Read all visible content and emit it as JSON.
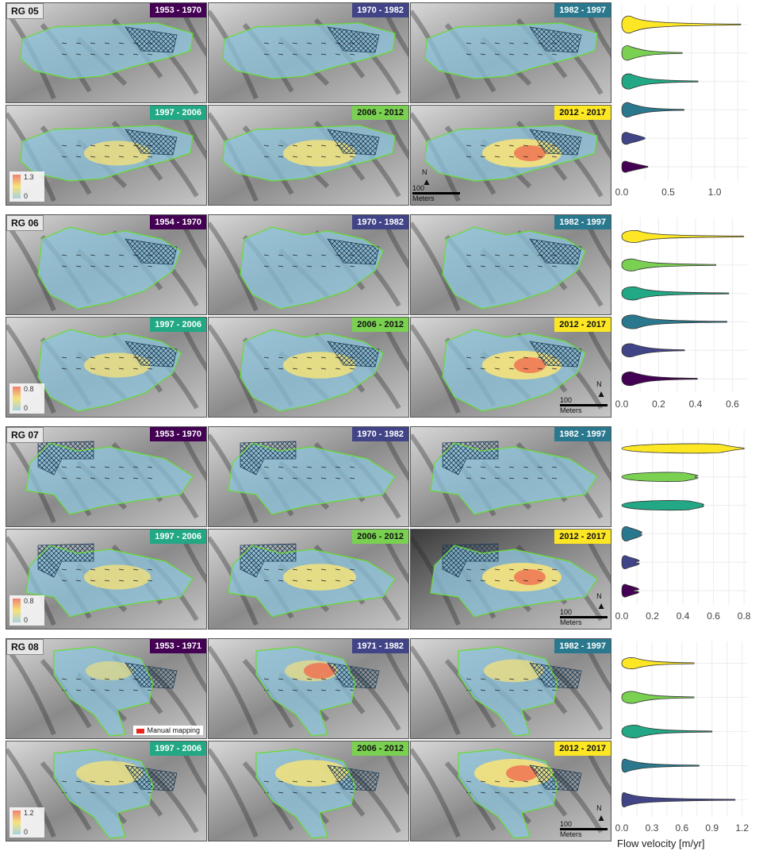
{
  "colors": {
    "periods": [
      "#fde725",
      "#7ad151",
      "#22a884",
      "#2a788e",
      "#414487",
      "#440154"
    ],
    "period_label_bg": [
      "#440154",
      "#414487",
      "#2a788e",
      "#22a884",
      "#7ad151",
      "#fde725"
    ],
    "outline": "#66dd33",
    "icefill": "#8ec6de",
    "fast": "#f06d50",
    "mid": "#f6e27a"
  },
  "icons": {
    "north_arrow": "north-arrow-icon",
    "hatch": "crosshatch-pattern"
  },
  "blocks": [
    {
      "id": "RG 05",
      "periods": [
        "1953 - 1970",
        "1970 - 1982",
        "1982 - 1997",
        "1997 - 2006",
        "2006 - 2012",
        "2012 - 2017"
      ],
      "legend_max": "1.3",
      "legend_min": "0",
      "north": "N",
      "scale": "100",
      "scale_unit": "Meters"
    },
    {
      "id": "RG 06",
      "periods": [
        "1954 - 1970",
        "1970 - 1982",
        "1982 - 1997",
        "1997 - 2006",
        "2006 - 2012",
        "2012 - 2017"
      ],
      "legend_max": "0.8",
      "legend_min": "0",
      "north": "N",
      "scale": "100",
      "scale_unit": "Meters"
    },
    {
      "id": "RG 07",
      "periods": [
        "1953 - 1970",
        "1970 - 1982",
        "1982 - 1997",
        "1997 - 2006",
        "2006 - 2012",
        "2012 - 2017"
      ],
      "legend_max": "0.8",
      "legend_min": "0",
      "north": "N",
      "scale": "100",
      "scale_unit": "Meters"
    },
    {
      "id": "RG 08",
      "periods": [
        "1953 - 1971",
        "1971 - 1982",
        "1982 - 1997",
        "1997 - 2006",
        "2006 - 2012",
        "2012 - 2017"
      ],
      "legend_max": "1.2",
      "legend_min": "0",
      "north": "N",
      "scale": "100",
      "scale_unit": "Meters",
      "manual_mapping": "Manual mapping"
    }
  ],
  "chart_data": [
    {
      "type": "violin",
      "block": "RG 05",
      "xlim": [
        0,
        1.35
      ],
      "ticks": [
        0,
        0.5,
        1.0
      ],
      "tick_labels": [
        "0.0",
        "0.5",
        "1.0"
      ],
      "series": [
        {
          "median": 0.12,
          "q_width": 0.45,
          "max": 1.28
        },
        {
          "median": 0.1,
          "q_width": 0.35,
          "max": 0.65
        },
        {
          "median": 0.12,
          "q_width": 0.38,
          "max": 0.82
        },
        {
          "median": 0.1,
          "q_width": 0.35,
          "max": 0.67
        },
        {
          "median": 0.08,
          "q_width": 0.25,
          "max": 0.25
        },
        {
          "median": 0.07,
          "q_width": 0.22,
          "max": 0.28
        }
      ]
    },
    {
      "type": "violin",
      "block": "RG 06",
      "xlim": [
        0,
        0.68
      ],
      "ticks": [
        0,
        0.2,
        0.4,
        0.6
      ],
      "tick_labels": [
        "0.0",
        "0.2",
        "0.4",
        "0.6"
      ],
      "series": [
        {
          "median": 0.1,
          "q_width": 0.25,
          "max": 0.66
        },
        {
          "median": 0.08,
          "q_width": 0.25,
          "max": 0.51
        },
        {
          "median": 0.09,
          "q_width": 0.3,
          "max": 0.58
        },
        {
          "median": 0.09,
          "q_width": 0.32,
          "max": 0.57
        },
        {
          "median": 0.07,
          "q_width": 0.3,
          "max": 0.34
        },
        {
          "median": 0.07,
          "q_width": 0.32,
          "max": 0.41
        }
      ]
    },
    {
      "type": "violin",
      "block": "RG 07",
      "xlim": [
        0,
        0.82
      ],
      "ticks": [
        0,
        0.2,
        0.4,
        0.6,
        0.8
      ],
      "tick_labels": [
        "0.0",
        "0.2",
        "0.4",
        "0.6",
        "0.8"
      ],
      "series": [
        {
          "median": 0.65,
          "q_width": 0.15,
          "max": 0.8
        },
        {
          "median": 0.42,
          "q_width": 0.14,
          "max": 0.48
        },
        {
          "median": 0.45,
          "q_width": 0.16,
          "max": 0.53
        },
        {
          "median": 0.05,
          "q_width": 0.35,
          "max": 0.12
        },
        {
          "median": 0.04,
          "q_width": 0.3,
          "max": 0.09
        },
        {
          "median": 0.04,
          "q_width": 0.28,
          "max": 0.08
        }
      ]
    },
    {
      "type": "violin",
      "block": "RG 08",
      "xlim": [
        0,
        1.25
      ],
      "ticks": [
        0,
        0.3,
        0.6,
        0.9,
        1.2
      ],
      "tick_labels": [
        "0.0",
        "0.3",
        "0.6",
        "0.9",
        "1.2"
      ],
      "xlabel": "Flow velocity [m/yr]",
      "series": [
        {
          "median": 0.15,
          "q_width": 0.22,
          "max": 0.72
        },
        {
          "median": 0.15,
          "q_width": 0.25,
          "max": 0.72
        },
        {
          "median": 0.18,
          "q_width": 0.28,
          "max": 0.9
        },
        {
          "median": 0.06,
          "q_width": 0.3,
          "max": 0.77
        },
        {
          "median": 0.05,
          "q_width": 0.35,
          "max": 1.13
        }
      ]
    }
  ]
}
